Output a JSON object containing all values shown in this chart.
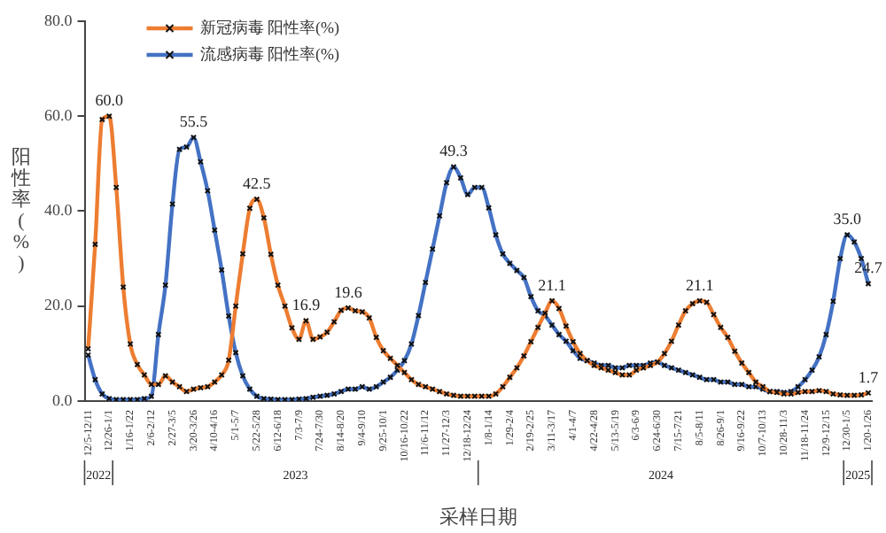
{
  "chart_data": {
    "type": "line",
    "xlabel": "采样日期",
    "ylabel": "阳性率(%)",
    "categories": [
      "12/5-12/11",
      null,
      null,
      "12/26-1/1",
      null,
      null,
      "1/16-1/22",
      null,
      null,
      "2/6-2/12",
      null,
      null,
      "2/27-3/5",
      null,
      null,
      "3/20-3/26",
      null,
      null,
      "4/10-4/16",
      null,
      null,
      "5/1-5/7",
      null,
      null,
      "5/22-5/28",
      null,
      null,
      "6/12-6/18",
      null,
      null,
      "7/3-7/9",
      null,
      null,
      "7/24-7/30",
      null,
      null,
      "8/14-8/20",
      null,
      null,
      "9/4-9/10",
      null,
      null,
      "9/25-10/1",
      null,
      null,
      "10/16-10/22",
      null,
      null,
      "11/6-11/12",
      null,
      null,
      "11/27-12/3",
      null,
      null,
      "12/18-12/24",
      null,
      null,
      "1/8-1/14",
      null,
      null,
      "1/29-2/4",
      null,
      null,
      "2/19-2/25",
      null,
      null,
      "3/11-3/17",
      null,
      null,
      "4/1-4/7",
      null,
      null,
      "4/22-4/28",
      null,
      null,
      "5/13-5/19",
      null,
      null,
      "6/3-6/9",
      null,
      null,
      "6/24-6/30",
      null,
      null,
      "7/15-7/21",
      null,
      null,
      "8/5-8/11",
      null,
      null,
      "8/26-9/1",
      null,
      null,
      "9/16-9/22",
      null,
      null,
      "10/7-10/13",
      null,
      null,
      "10/28-11/3",
      null,
      null,
      "11/18-11/24",
      null,
      null,
      "12/9-12/15",
      null,
      null,
      "12/30-1/5",
      null,
      null,
      "1/20-1/26"
    ],
    "series": [
      {
        "name": "新冠病毒 阳性率(%)",
        "color": "#ed7d31",
        "values": [
          11,
          33,
          59.3,
          60.0,
          45,
          24,
          12,
          7.7,
          5.5,
          3.5,
          3.5,
          5.3,
          4,
          3,
          2,
          2.5,
          2.8,
          3,
          4,
          5.5,
          8.6,
          20,
          31,
          40.6,
          42.5,
          38.6,
          30.9,
          24.4,
          20,
          15.4,
          13,
          16.9,
          13,
          13.5,
          14.5,
          16.7,
          19.1,
          19.6,
          19,
          18.8,
          17.5,
          13.4,
          10.6,
          9,
          7.5,
          6,
          4.5,
          3.5,
          3,
          2.5,
          2,
          1.5,
          1.2,
          1,
          1,
          1,
          1,
          1,
          1.5,
          3,
          5,
          7,
          9.5,
          12.5,
          15.5,
          18.5,
          21.1,
          19.5,
          15.8,
          12.5,
          10,
          8.5,
          7.5,
          7,
          6.5,
          6,
          5.5,
          5.5,
          6.5,
          7,
          7.5,
          8.2,
          10,
          12.6,
          16,
          19,
          20.5,
          21.1,
          20.8,
          18.2,
          15.5,
          13.4,
          10.5,
          8,
          6,
          4,
          3,
          2,
          1.8,
          1.5,
          1.5,
          1.8,
          2,
          2,
          2.2,
          2,
          1.5,
          1.3,
          1.2,
          1.2,
          1.3,
          1.7
        ],
        "value_labels": [
          null,
          null,
          null,
          "60.0",
          null,
          null,
          null,
          null,
          null,
          null,
          null,
          null,
          null,
          null,
          null,
          null,
          null,
          null,
          null,
          null,
          null,
          null,
          null,
          null,
          "42.5",
          null,
          null,
          null,
          null,
          null,
          null,
          "16.9",
          null,
          null,
          null,
          null,
          null,
          "19.6",
          null,
          null,
          null,
          null,
          null,
          null,
          null,
          null,
          null,
          null,
          null,
          null,
          null,
          null,
          null,
          null,
          null,
          null,
          null,
          null,
          null,
          null,
          null,
          null,
          null,
          null,
          null,
          null,
          "21.1",
          null,
          null,
          null,
          null,
          null,
          null,
          null,
          null,
          null,
          null,
          null,
          null,
          null,
          null,
          null,
          null,
          null,
          null,
          null,
          null,
          "21.1",
          null,
          null,
          null,
          null,
          null,
          null,
          null,
          null,
          null,
          null,
          null,
          null,
          null,
          null,
          null,
          null,
          null,
          null,
          null,
          null,
          null,
          null,
          null,
          "1.7"
        ]
      },
      {
        "name": "流感病毒 阳性率(%)",
        "color": "#4472c4",
        "values": [
          9.7,
          4.5,
          1.5,
          0.5,
          0.3,
          0.3,
          0.3,
          0.3,
          0.5,
          1,
          14,
          24.4,
          41.5,
          53,
          53.5,
          55.5,
          50.4,
          44.3,
          36,
          27.6,
          17.9,
          10.2,
          5.3,
          2.5,
          1,
          0.5,
          0.4,
          0.3,
          0.3,
          0.3,
          0.4,
          0.5,
          0.8,
          1,
          1.2,
          1.5,
          2,
          2.5,
          2.5,
          3,
          2.5,
          3,
          4,
          5,
          6.5,
          8.5,
          12,
          18,
          25,
          32,
          39,
          46,
          49.3,
          47,
          43.5,
          45,
          45,
          40.7,
          35,
          31,
          29,
          27.5,
          26,
          22,
          19,
          18,
          16,
          14,
          12.6,
          10.6,
          9,
          8.5,
          8,
          7.5,
          7.5,
          7,
          7,
          7.5,
          7.5,
          7.5,
          8,
          8.2,
          7.5,
          7,
          6.5,
          6,
          5.5,
          5,
          4.5,
          4.5,
          4,
          4,
          3.5,
          3.5,
          3,
          3,
          2.5,
          2,
          2,
          1.8,
          2,
          3,
          4.5,
          6.5,
          9.3,
          14,
          21,
          30,
          35.0,
          33.5,
          30,
          24.7
        ],
        "value_labels": [
          null,
          null,
          null,
          null,
          null,
          null,
          null,
          null,
          null,
          null,
          null,
          null,
          null,
          null,
          null,
          "55.5",
          null,
          null,
          null,
          null,
          null,
          null,
          null,
          null,
          null,
          null,
          null,
          null,
          null,
          null,
          null,
          null,
          null,
          null,
          null,
          null,
          null,
          null,
          null,
          null,
          null,
          null,
          null,
          null,
          null,
          null,
          null,
          null,
          null,
          null,
          null,
          null,
          "49.3",
          null,
          null,
          null,
          null,
          null,
          null,
          null,
          null,
          null,
          null,
          null,
          null,
          null,
          null,
          null,
          null,
          null,
          null,
          null,
          null,
          null,
          null,
          null,
          null,
          null,
          null,
          null,
          null,
          null,
          null,
          null,
          null,
          null,
          null,
          null,
          null,
          null,
          null,
          null,
          null,
          null,
          null,
          null,
          null,
          null,
          null,
          null,
          null,
          null,
          null,
          null,
          null,
          null,
          null,
          null,
          "35.0",
          null,
          null,
          "24.7"
        ]
      }
    ],
    "ylim": [
      0,
      80
    ],
    "yticks": [
      {
        "value": 0,
        "label": "0.0"
      },
      {
        "value": 20,
        "label": "20.0"
      },
      {
        "value": 40,
        "label": "40.0"
      },
      {
        "value": 60,
        "label": "60.0"
      },
      {
        "value": 80,
        "label": "80.0"
      }
    ],
    "annotations": [
      "2022",
      "2023",
      "2024",
      "2025"
    ],
    "legend": "top",
    "grid": false,
    "marker": "cross",
    "line_style": "solid"
  }
}
